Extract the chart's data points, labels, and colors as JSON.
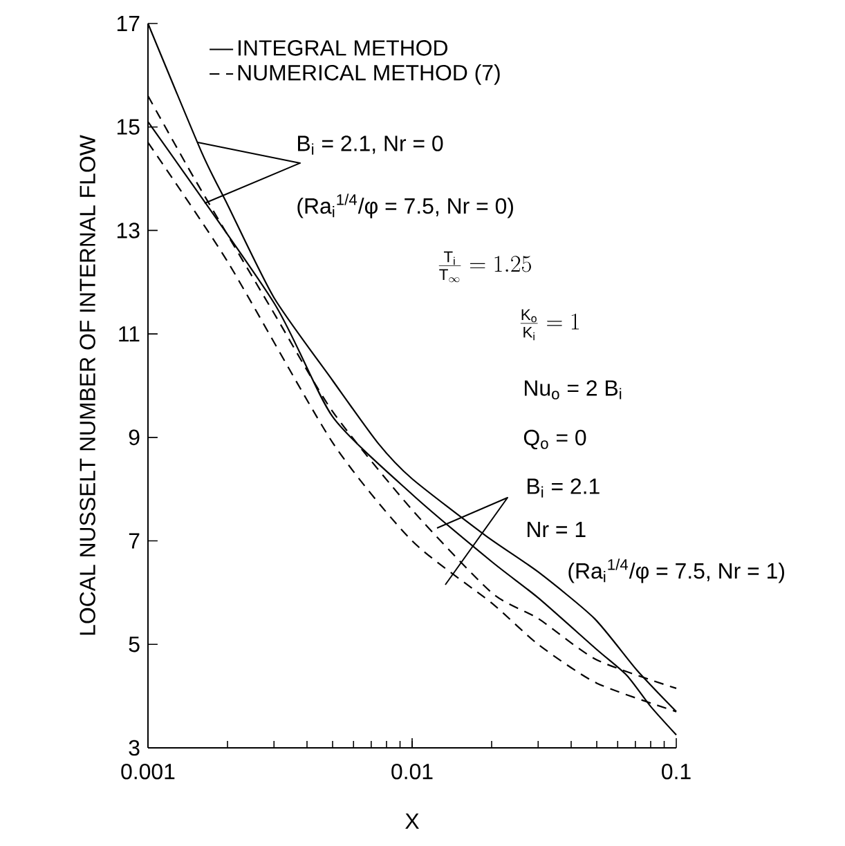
{
  "chart_data": {
    "type": "line",
    "xlabel": "X",
    "ylabel": "LOCAL NUSSELT NUMBER OF INTERNAL FLOW",
    "log": "x",
    "xlim": [
      0.001,
      0.1
    ],
    "ylim": [
      3,
      17
    ],
    "xticks": [
      0.001,
      0.01,
      0.1
    ],
    "yticks": [
      3,
      5,
      7,
      9,
      11,
      13,
      15,
      17
    ],
    "grid": false,
    "legend": "top",
    "marker": "none",
    "series": [
      {
        "name": "INTEGRAL METHOD",
        "color": "#000000",
        "line_style": "solid",
        "x": [
          0.001,
          0.0016,
          0.002,
          0.003,
          0.005,
          0.0074,
          0.01,
          0.019,
          0.03,
          0.049,
          0.071,
          0.1
        ],
        "values": [
          17,
          14.5,
          13.5,
          11.7,
          10.1,
          8.9,
          8.2,
          7.1,
          6.4,
          5.5,
          4.5,
          3.7
        ]
      },
      {
        "name": "NUMERICAL METHOD (7)",
        "color": "#000000",
        "line_style": "dashed",
        "x": [
          0.001,
          0.0015,
          0.003,
          0.005,
          0.01,
          0.02,
          0.03,
          0.05,
          0.1
        ],
        "values": [
          15.6,
          14.0,
          11.4,
          9.5,
          7.6,
          6.0,
          5.5,
          4.7,
          4.15
        ]
      },
      {
        "color": "#000000",
        "line_style": "solid",
        "x": [
          0.001,
          0.003,
          0.005,
          0.01,
          0.02,
          0.03,
          0.05,
          0.065,
          0.08,
          0.1
        ],
        "values": [
          15.1,
          11.6,
          9.4,
          7.9,
          6.6,
          5.9,
          4.9,
          4.4,
          3.8,
          3.25
        ]
      },
      {
        "color": "#000000",
        "line_style": "dashed",
        "x": [
          0.001,
          0.002,
          0.005,
          0.01,
          0.02,
          0.03,
          0.05,
          0.1
        ],
        "values": [
          14.7,
          12.4,
          8.9,
          7.0,
          5.8,
          5.0,
          4.25,
          3.7
        ]
      }
    ],
    "annotations": [
      "B$_{i}$ = 2.1, Nr = 0",
      "(Ra$_{i}$$^{1/4}$/φ = 7.5, Nr = 0)",
      "\\frac{\\mathrm{T_i}}{\\mathrm{T_\\infty}} = 1.25",
      "\\frac{\\mathrm{K_o}}{\\mathrm{K_i}} = 1",
      "Nu$_{o}$ = 2 B$_{i}$",
      "Q$_{o}$ = 0",
      "B$_{i}$ = 2.1",
      "Nr = 1",
      "(Ra$_{i}$$^{1/4}$/φ = 7.5, Nr = 1)"
    ]
  }
}
